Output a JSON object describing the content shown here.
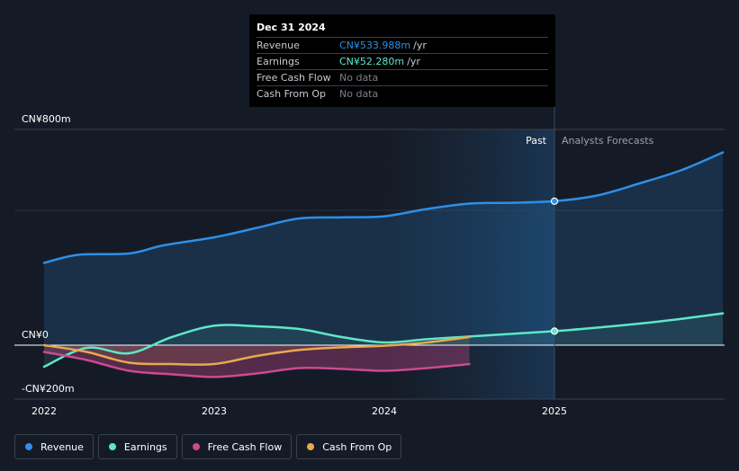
{
  "chart_data": {
    "type": "line",
    "title": "",
    "xlabel": "",
    "ylabel": "",
    "ylim": [
      -200,
      800
    ],
    "y_tick_labels": [
      "CN¥800m",
      "CN¥0",
      "-CN¥200m"
    ],
    "x_tick_labels": [
      "2022",
      "2023",
      "2024",
      "2025"
    ],
    "past_label": "Past",
    "forecast_label": "Analysts Forecasts",
    "series": [
      {
        "name": "Revenue",
        "color": "#2e8fe6",
        "points": [
          [
            2022.0,
            305
          ],
          [
            2022.2,
            335
          ],
          [
            2022.5,
            340
          ],
          [
            2022.7,
            370
          ],
          [
            2023.0,
            400
          ],
          [
            2023.25,
            435
          ],
          [
            2023.5,
            470
          ],
          [
            2023.75,
            474
          ],
          [
            2024.0,
            478
          ],
          [
            2024.25,
            505
          ],
          [
            2024.5,
            525
          ],
          [
            2024.75,
            528
          ],
          [
            2025.0,
            534
          ],
          [
            2025.25,
            555
          ],
          [
            2025.5,
            600
          ],
          [
            2025.75,
            650
          ],
          [
            2025.99,
            715
          ]
        ]
      },
      {
        "name": "Earnings",
        "color": "#5ee6c9",
        "points": [
          [
            2022.0,
            -80
          ],
          [
            2022.25,
            -10
          ],
          [
            2022.5,
            -30
          ],
          [
            2022.75,
            30
          ],
          [
            2023.0,
            72
          ],
          [
            2023.25,
            70
          ],
          [
            2023.5,
            60
          ],
          [
            2023.75,
            30
          ],
          [
            2024.0,
            10
          ],
          [
            2024.25,
            22
          ],
          [
            2024.5,
            32
          ],
          [
            2024.75,
            42
          ],
          [
            2025.0,
            52
          ],
          [
            2025.25,
            65
          ],
          [
            2025.5,
            80
          ],
          [
            2025.75,
            98
          ],
          [
            2025.99,
            118
          ]
        ]
      },
      {
        "name": "Free Cash Flow",
        "color": "#cc4a8f",
        "points": [
          [
            2022.0,
            -25
          ],
          [
            2022.25,
            -55
          ],
          [
            2022.5,
            -95
          ],
          [
            2022.75,
            -108
          ],
          [
            2023.0,
            -118
          ],
          [
            2023.25,
            -105
          ],
          [
            2023.5,
            -85
          ],
          [
            2023.75,
            -88
          ],
          [
            2024.0,
            -95
          ],
          [
            2024.25,
            -85
          ],
          [
            2024.5,
            -70
          ]
        ]
      },
      {
        "name": "Cash From Op",
        "color": "#e8a94e",
        "points": [
          [
            2022.0,
            0
          ],
          [
            2022.25,
            -25
          ],
          [
            2022.5,
            -65
          ],
          [
            2022.75,
            -70
          ],
          [
            2023.0,
            -70
          ],
          [
            2023.25,
            -40
          ],
          [
            2023.5,
            -18
          ],
          [
            2023.75,
            -8
          ],
          [
            2024.0,
            -2
          ],
          [
            2024.25,
            10
          ],
          [
            2024.5,
            30
          ]
        ]
      }
    ],
    "highlight": {
      "x": 2025.0
    }
  },
  "tooltip": {
    "date": "Dec 31 2024",
    "rows": [
      {
        "label": "Revenue",
        "value": "CN¥533.988m",
        "unit": "/yr",
        "color": "#2e8fe6"
      },
      {
        "label": "Earnings",
        "value": "CN¥52.280m",
        "unit": "/yr",
        "color": "#5ee6c9"
      },
      {
        "label": "Free Cash Flow",
        "value": "No data"
      },
      {
        "label": "Cash From Op",
        "value": "No data"
      }
    ]
  },
  "legend": [
    {
      "label": "Revenue",
      "color": "#2e8fe6"
    },
    {
      "label": "Earnings",
      "color": "#5ee6c9"
    },
    {
      "label": "Free Cash Flow",
      "color": "#cc4a8f"
    },
    {
      "label": "Cash From Op",
      "color": "#e8a94e"
    }
  ]
}
